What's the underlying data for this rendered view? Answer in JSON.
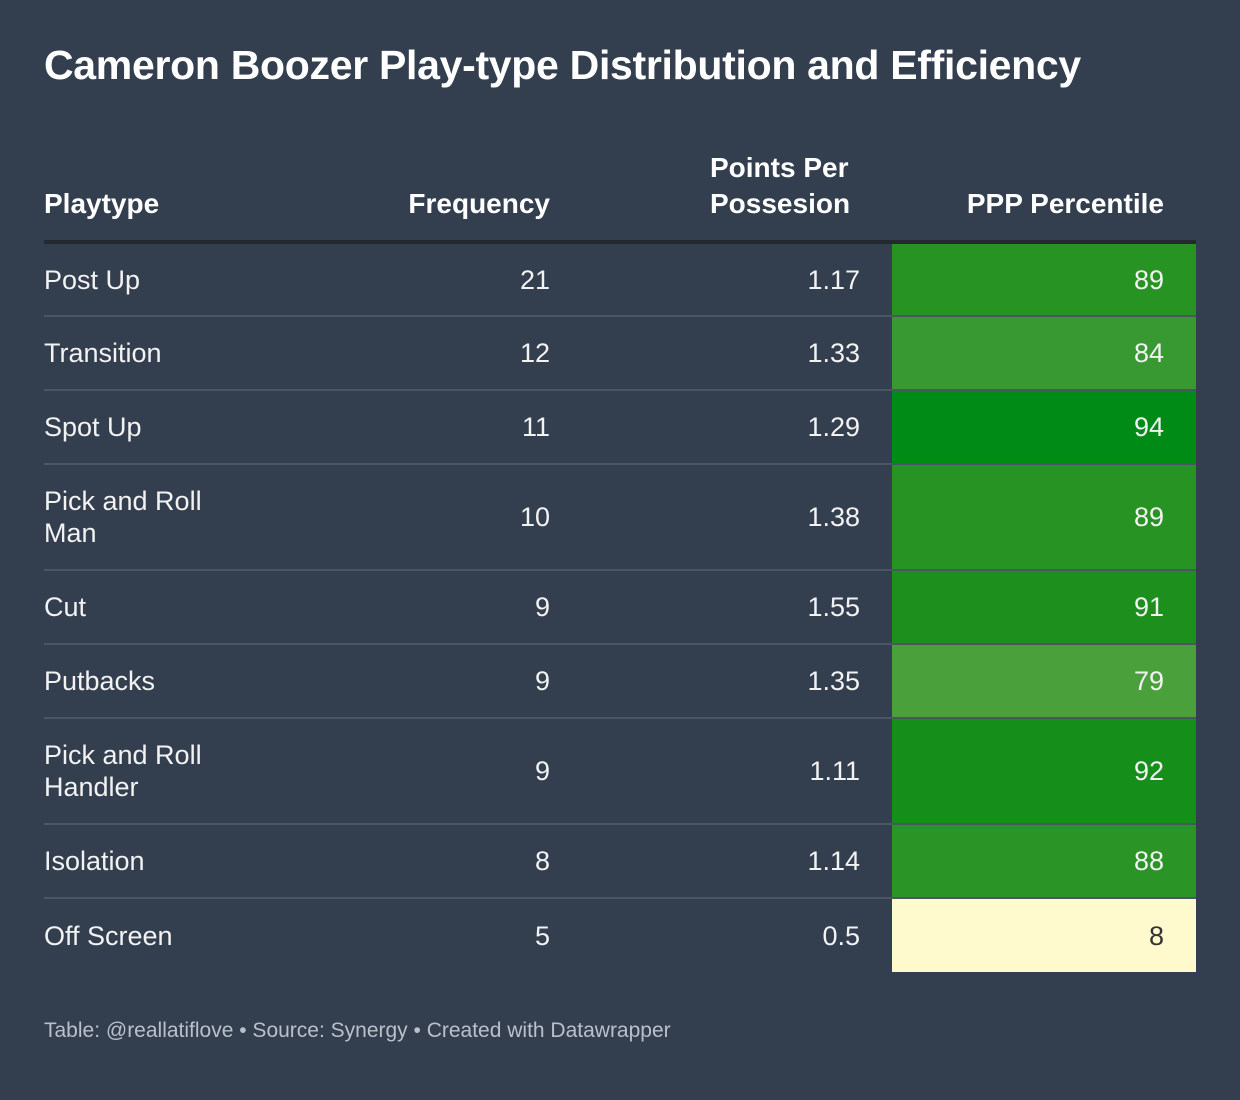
{
  "title": "Cameron Boozer Play-type Distribution and Efficiency",
  "colors": {
    "background": "#333e4f",
    "low_percentile_fill": "#fffacd",
    "low_percentile_text": "#333333"
  },
  "chart_data": {
    "type": "table",
    "title": "Cameron Boozer Play-type Distribution and Efficiency",
    "columns": [
      "Playtype",
      "Frequency",
      "Points Per Possesion",
      "PPP Percentile"
    ],
    "rows": [
      {
        "playtype": "Post Up",
        "frequency": "21",
        "ppp": "1.17",
        "percentile": "89",
        "color": "#279323"
      },
      {
        "playtype": "Transition",
        "frequency": "12",
        "ppp": "1.33",
        "percentile": "84",
        "color": "#389933"
      },
      {
        "playtype": "Spot Up",
        "frequency": "11",
        "ppp": "1.29",
        "percentile": "94",
        "color": "#008a16"
      },
      {
        "playtype": "Pick and Roll Man",
        "frequency": "10",
        "ppp": "1.38",
        "percentile": "89",
        "color": "#279323"
      },
      {
        "playtype": "Cut",
        "frequency": "9",
        "ppp": "1.55",
        "percentile": "91",
        "color": "#1c8f1d"
      },
      {
        "playtype": "Putbacks",
        "frequency": "9",
        "ppp": "1.35",
        "percentile": "79",
        "color": "#4aa13c"
      },
      {
        "playtype": "Pick and Roll Handler",
        "frequency": "9",
        "ppp": "1.11",
        "percentile": "92",
        "color": "#168e1a"
      },
      {
        "playtype": "Isolation",
        "frequency": "8",
        "ppp": "1.14",
        "percentile": "88",
        "color": "#2a9426"
      },
      {
        "playtype": "Off Screen",
        "frequency": "5",
        "ppp": "0.5",
        "percentile": "8",
        "color": "#fffacd"
      }
    ]
  },
  "footer": "Table: @reallatiflove • Source: Synergy • Created with Datawrapper"
}
